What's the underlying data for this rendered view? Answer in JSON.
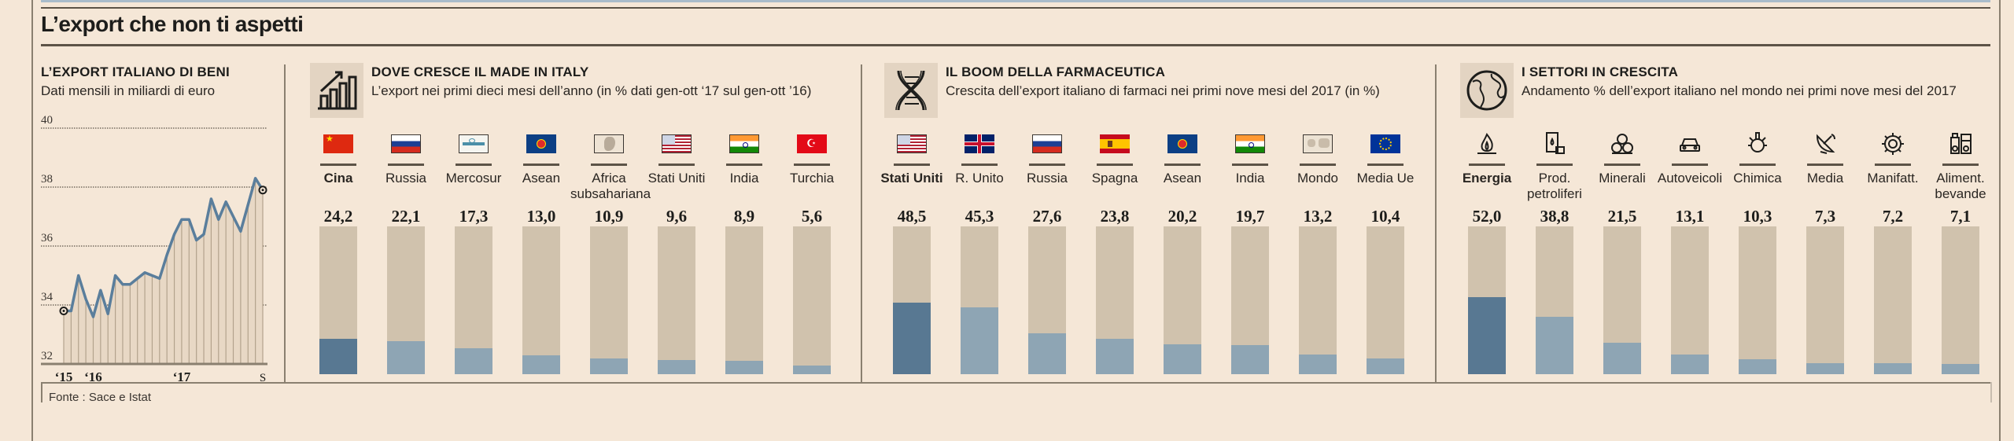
{
  "title": "L’export che non ti aspetti",
  "footer": "Fonte : Sace e Istat",
  "colors": {
    "background": "#f5e7d7",
    "bar_track": "#d0c2ad",
    "bar_fill": "#8ea5b4",
    "bar_fill_highlight": "#587892",
    "line": "#5a7e9c"
  },
  "chart_data": [
    {
      "type": "area",
      "title": "L’EXPORT ITALIANO DI BENI",
      "subtitle": "Dati mensili in miliardi di euro",
      "ylim": [
        32,
        40
      ],
      "yticks": [
        "32",
        "34",
        "36",
        "38",
        "40"
      ],
      "xticks": [
        "‘15",
        "‘16",
        "‘17",
        "S"
      ],
      "grid": true,
      "values": [
        33.8,
        33.8,
        35.0,
        34.2,
        33.6,
        34.5,
        33.7,
        35.0,
        34.7,
        34.7,
        34.9,
        35.1,
        35.0,
        34.9,
        35.7,
        36.4,
        36.9,
        36.9,
        36.2,
        36.4,
        37.6,
        36.9,
        37.5,
        37.0,
        36.5,
        37.4,
        38.3,
        37.9
      ]
    },
    {
      "type": "bar",
      "title": "DOVE CRESCE IL MADE IN ITALY",
      "subtitle": "L’export nei primi dieci mesi dell’anno (in % dati gen-ott ‘17 sul gen-ott ’16)",
      "icon": "growth-chart-icon",
      "ylim": [
        0,
        100
      ],
      "items": [
        {
          "label": "Cina",
          "value": 24.2,
          "display": "24,2",
          "icon": "china-flag",
          "highlight": true
        },
        {
          "label": "Russia",
          "value": 22.1,
          "display": "22,1",
          "icon": "russia-flag"
        },
        {
          "label": "Mercosur",
          "value": 17.3,
          "display": "17,3",
          "icon": "mercosur-flag"
        },
        {
          "label": "Asean",
          "value": 13.0,
          "display": "13,0",
          "icon": "asean-flag"
        },
        {
          "label": "Africa subsahariana",
          "value": 10.9,
          "display": "10,9",
          "icon": "africa-map"
        },
        {
          "label": "Stati Uniti",
          "value": 9.6,
          "display": "9,6",
          "icon": "usa-flag"
        },
        {
          "label": "India",
          "value": 8.9,
          "display": "8,9",
          "icon": "india-flag"
        },
        {
          "label": "Turchia",
          "value": 5.6,
          "display": "5,6",
          "icon": "turkey-flag"
        }
      ]
    },
    {
      "type": "bar",
      "title": "IL BOOM DELLA FARMACEUTICA",
      "subtitle": "Crescita dell’export italiano di farmaci nei primi nove mesi del 2017 (in %)",
      "icon": "dna-icon",
      "ylim": [
        0,
        100
      ],
      "items": [
        {
          "label": "Stati Uniti",
          "value": 48.5,
          "display": "48,5",
          "icon": "usa-flag",
          "highlight": true
        },
        {
          "label": "R. Unito",
          "value": 45.3,
          "display": "45,3",
          "icon": "uk-flag"
        },
        {
          "label": "Russia",
          "value": 27.6,
          "display": "27,6",
          "icon": "russia-flag"
        },
        {
          "label": "Spagna",
          "value": 23.8,
          "display": "23,8",
          "icon": "spain-flag"
        },
        {
          "label": "Asean",
          "value": 20.2,
          "display": "20,2",
          "icon": "asean-flag"
        },
        {
          "label": "India",
          "value": 19.7,
          "display": "19,7",
          "icon": "india-flag"
        },
        {
          "label": "Mondo",
          "value": 13.2,
          "display": "13,2",
          "icon": "world-map"
        },
        {
          "label": "Media Ue",
          "value": 10.4,
          "display": "10,4",
          "icon": "eu-flag"
        }
      ]
    },
    {
      "type": "bar",
      "title": "I SETTORI IN CRESCITA",
      "subtitle": "Andamento % dell’export italiano nel mondo nei primi nove mesi del 2017",
      "icon": "globe-icon",
      "ylim": [
        0,
        100
      ],
      "items": [
        {
          "label": "Energia",
          "value": 52.0,
          "display": "52,0",
          "icon": "flame-icon",
          "highlight": true
        },
        {
          "label": "Prod. petroliferi",
          "value": 38.8,
          "display": "38,8",
          "icon": "oil-barrel-icon"
        },
        {
          "label": "Minerali",
          "value": 21.5,
          "display": "21,5",
          "icon": "minerals-icon"
        },
        {
          "label": "Autoveicoli",
          "value": 13.1,
          "display": "13,1",
          "icon": "car-icon"
        },
        {
          "label": "Chimica",
          "value": 10.3,
          "display": "10,3",
          "icon": "chemistry-icon"
        },
        {
          "label": "Media",
          "value": 7.3,
          "display": "7,3",
          "icon": "satellite-dish-icon"
        },
        {
          "label": "Manifatt.",
          "value": 7.2,
          "display": "7,2",
          "icon": "gear-icon"
        },
        {
          "label": "Aliment. bevande",
          "value": 7.1,
          "display": "7,1",
          "icon": "food-drinks-icon"
        }
      ]
    }
  ]
}
